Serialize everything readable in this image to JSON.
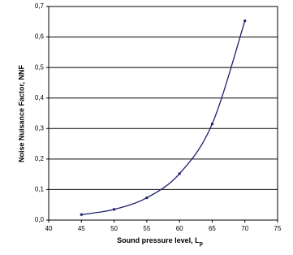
{
  "chart_data": {
    "type": "line",
    "xlabel": "Sound pressure level, L",
    "xlabel_subscript": "p",
    "ylabel": "Noise Nuisance Factor, NNF",
    "x": [
      45,
      50,
      55,
      60,
      65,
      70
    ],
    "series": [
      {
        "color": "#1f1f6e",
        "values": [
          0.018,
          0.035,
          0.073,
          0.152,
          0.315,
          0.653
        ]
      }
    ],
    "xlim": [
      40,
      75
    ],
    "xticks": [
      40,
      45,
      50,
      55,
      60,
      65,
      70,
      75
    ],
    "ylim": [
      0,
      0.7
    ],
    "yticks": [
      {
        "value": 0,
        "label": "0,0"
      },
      {
        "value": 0.1,
        "label": "0,1"
      },
      {
        "value": 0.2,
        "label": "0,2"
      },
      {
        "value": 0.3,
        "label": "0,3"
      },
      {
        "value": 0.4,
        "label": "0,4"
      },
      {
        "value": 0.5,
        "label": "0,5"
      },
      {
        "value": 0.6,
        "label": "0,6"
      },
      {
        "value": 0.7,
        "label": "0,7"
      }
    ],
    "grid": true
  }
}
